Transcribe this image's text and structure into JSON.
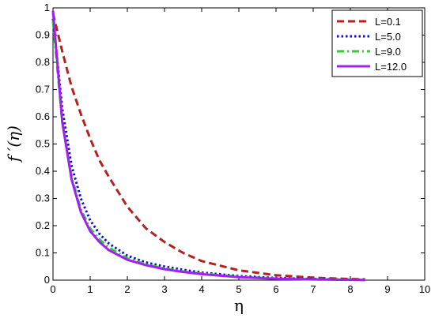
{
  "chart_data": {
    "type": "line",
    "xlabel": "η",
    "ylabel": "f ′(η)",
    "xlim": [
      0,
      10
    ],
    "ylim": [
      0,
      1
    ],
    "xticks": [
      "0",
      "1",
      "2",
      "3",
      "4",
      "5",
      "6",
      "7",
      "8",
      "9",
      "10"
    ],
    "yticks": [
      "0",
      "0.1",
      "0.2",
      "0.3",
      "0.4",
      "0.5",
      "0.6",
      "0.7",
      "0.8",
      "0.9",
      "1"
    ],
    "grid": false,
    "legend_position": "top-right",
    "x": [
      0,
      0.25,
      0.5,
      0.75,
      1,
      1.25,
      1.5,
      2,
      2.5,
      3,
      3.5,
      4,
      5,
      6,
      7,
      8,
      8.4
    ],
    "series": [
      {
        "name": "L=0.1",
        "color": "#b22222",
        "dash": "dashed",
        "values": [
          0.98,
          0.84,
          0.71,
          0.61,
          0.52,
          0.44,
          0.38,
          0.27,
          0.19,
          0.14,
          0.1,
          0.07,
          0.036,
          0.018,
          0.009,
          0.004,
          0.003
        ]
      },
      {
        "name": "L=5.0",
        "color": "#1010d0",
        "dash": "dotted",
        "values": [
          0.96,
          0.63,
          0.42,
          0.3,
          0.22,
          0.17,
          0.135,
          0.09,
          0.065,
          0.05,
          0.038,
          0.028,
          0.015,
          0.008,
          0.004,
          0.002,
          0.001
        ]
      },
      {
        "name": "L=9.0",
        "color": "#33cc33",
        "dash": "dashdot",
        "values": [
          0.95,
          0.58,
          0.38,
          0.26,
          0.19,
          0.15,
          0.12,
          0.08,
          0.058,
          0.043,
          0.032,
          0.024,
          0.012,
          0.006,
          0.003,
          0.0015,
          0.001
        ]
      },
      {
        "name": "L=12.0",
        "color": "#a020f0",
        "dash": "solid",
        "values": [
          0.99,
          0.58,
          0.37,
          0.25,
          0.18,
          0.14,
          0.11,
          0.075,
          0.055,
          0.04,
          0.03,
          0.022,
          0.011,
          0.005,
          0.0025,
          0.001,
          0.0005
        ]
      }
    ]
  }
}
